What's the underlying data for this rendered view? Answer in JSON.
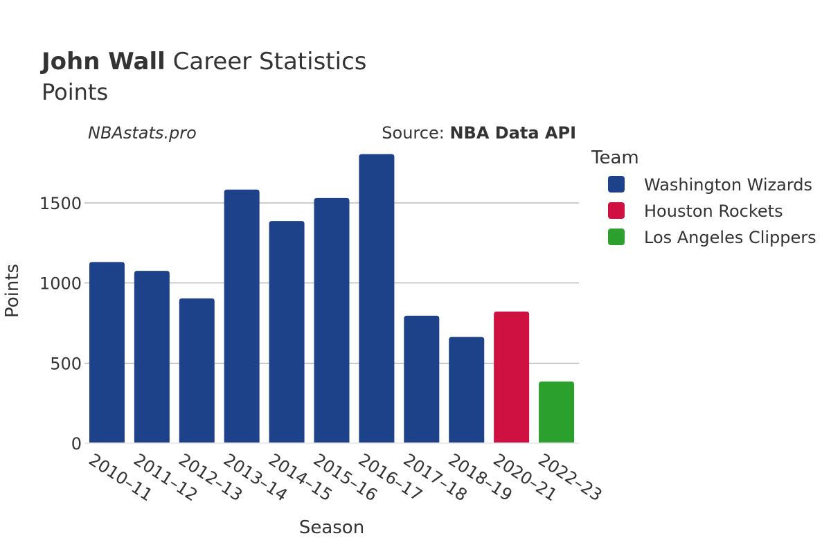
{
  "chart_data": {
    "type": "bar",
    "title_bold": "John Wall",
    "title_rest": " Career Statistics",
    "subtitle": "Points",
    "watermark": "NBAstats.pro",
    "source_prefix": "Source: ",
    "source_name": "NBA Data API",
    "xlabel": "Season",
    "ylabel": "Points",
    "ylim": [
      0,
      1900
    ],
    "yticks": [
      0,
      500,
      1000,
      1500
    ],
    "grid": true,
    "legend_title": "Team",
    "legend_position": "right",
    "categories": [
      "2010–11",
      "2011–12",
      "2012–13",
      "2013–14",
      "2014–15",
      "2015–16",
      "2016–17",
      "2017–18",
      "2018–19",
      "2020–21",
      "2022–23"
    ],
    "series": [
      {
        "name": "Washington Wizards",
        "color": "#1d428a",
        "values": [
          1131,
          1076,
          904,
          1583,
          1387,
          1531,
          1805,
          796,
          663,
          null,
          null
        ]
      },
      {
        "name": "Houston Rockets",
        "color": "#ce1141",
        "values": [
          null,
          null,
          null,
          null,
          null,
          null,
          null,
          null,
          null,
          822,
          null
        ]
      },
      {
        "name": "Los Angeles Clippers",
        "color": "#2ca02c",
        "values": [
          null,
          null,
          null,
          null,
          null,
          null,
          null,
          null,
          null,
          null,
          385
        ]
      }
    ]
  }
}
